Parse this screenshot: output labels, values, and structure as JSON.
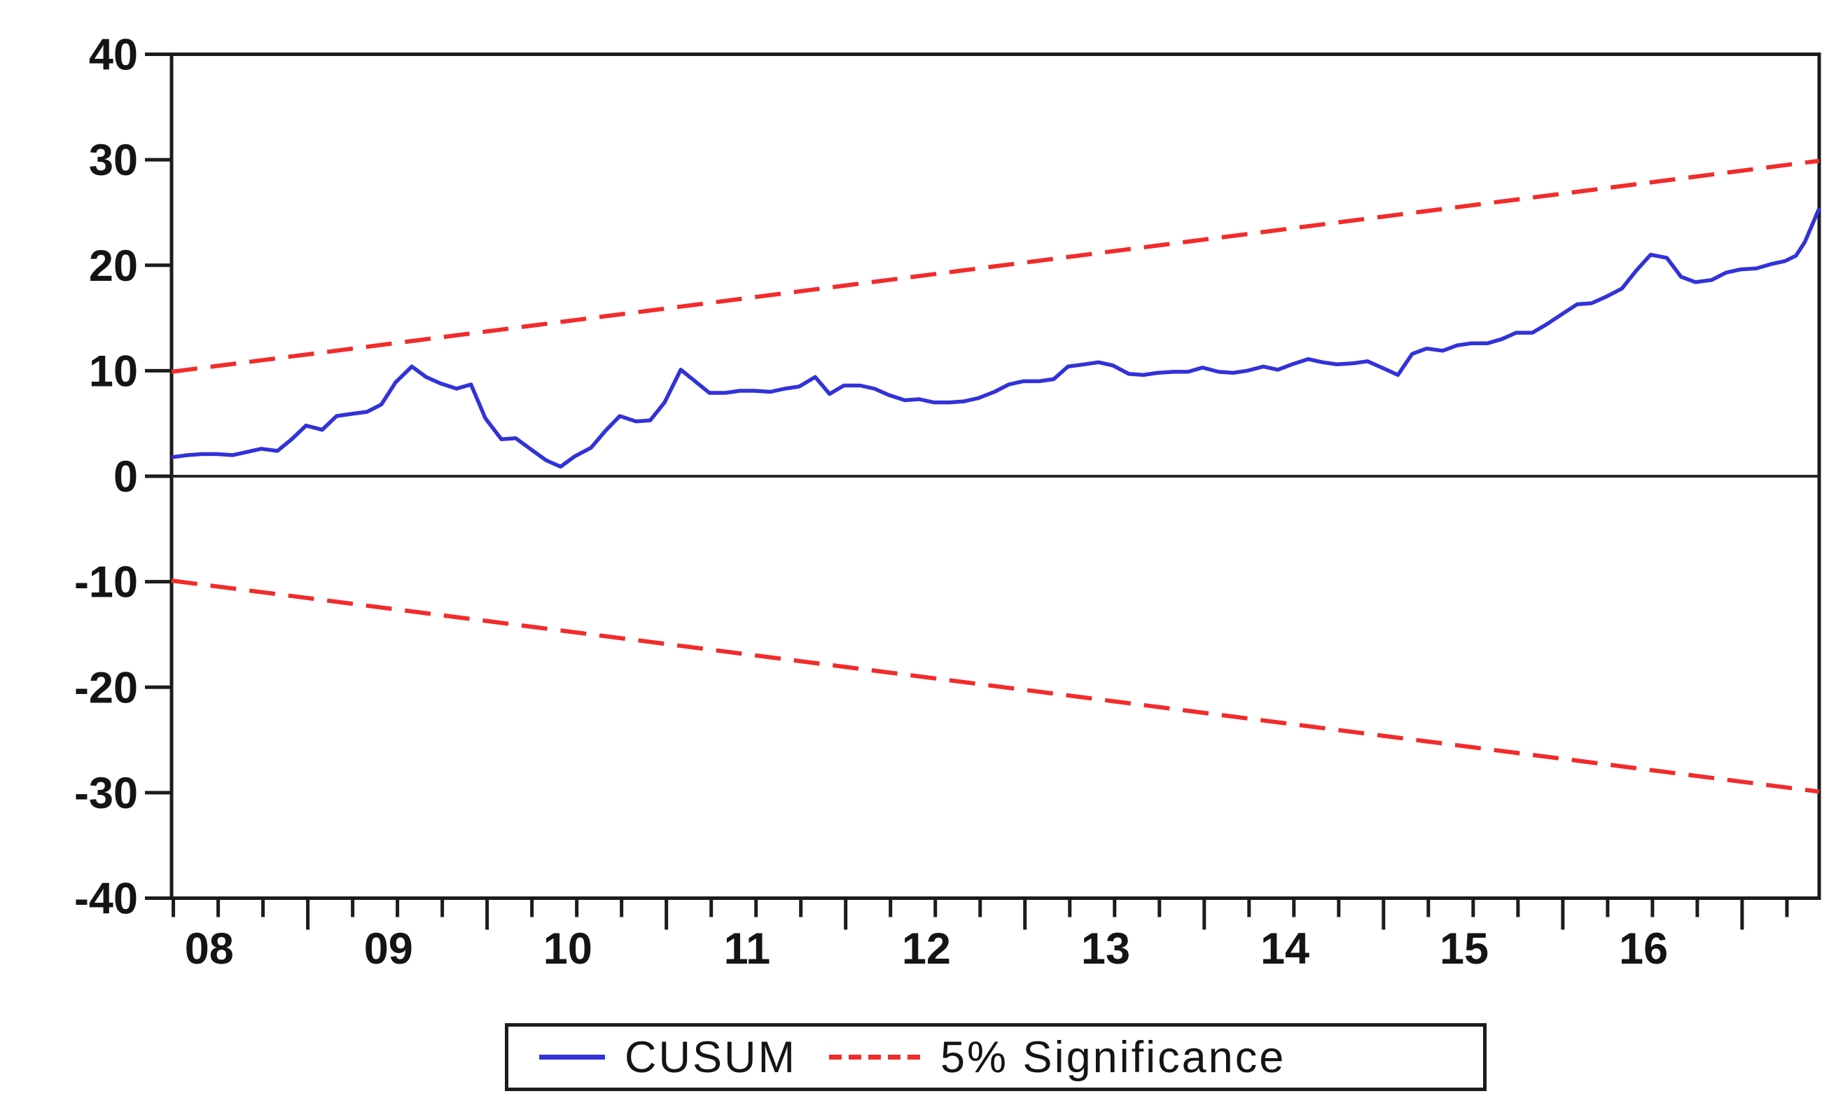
{
  "figure": {
    "description": "CUSUM recursive-residual stability test plot with 5% significance bounds",
    "background": "#ffffff"
  },
  "colors": {
    "cusum": "#3232d9",
    "significance": "#f22b2b",
    "axis": "#1c1c1c",
    "zero_line": "#262626",
    "text": "#141414",
    "background": "#ffffff"
  },
  "legend": {
    "items": [
      {
        "label": "CUSUM",
        "line_style": "solid",
        "color": "#3232d9"
      },
      {
        "label": "5% Significance",
        "line_style": "dashed",
        "color": "#f22b2b"
      }
    ]
  },
  "chart_data": {
    "type": "line",
    "title": "",
    "xlabel": "",
    "ylabel": "",
    "xlim": [
      2007.79,
      2016.98
    ],
    "ylim": [
      -40,
      40
    ],
    "grid": false,
    "legend_position": "bottom-center",
    "y_ticks": [
      40,
      30,
      20,
      10,
      0,
      -10,
      -20,
      -30,
      -40
    ],
    "x_tick_labels": [
      "08",
      "09",
      "10",
      "11",
      "12",
      "13",
      "14",
      "15",
      "16"
    ],
    "x_tick_years": [
      2008,
      2009,
      2010,
      2011,
      2012,
      2013,
      2014,
      2015,
      2016
    ],
    "minor_tick_start": 2007.8,
    "minor_tick_step": 0.25,
    "minor_tick_end": 2016.82,
    "zero_line": 0,
    "series": [
      {
        "name": "CUSUM",
        "style": "solid",
        "color_key": "cusum",
        "points": [
          [
            2007.79,
            1.8
          ],
          [
            2007.88,
            2.0
          ],
          [
            2007.96,
            2.1
          ],
          [
            2008.04,
            2.1
          ],
          [
            2008.13,
            2.0
          ],
          [
            2008.21,
            2.3
          ],
          [
            2008.29,
            2.6
          ],
          [
            2008.38,
            2.4
          ],
          [
            2008.46,
            3.5
          ],
          [
            2008.54,
            4.8
          ],
          [
            2008.63,
            4.4
          ],
          [
            2008.71,
            5.7
          ],
          [
            2008.79,
            5.9
          ],
          [
            2008.88,
            6.1
          ],
          [
            2008.96,
            6.8
          ],
          [
            2009.04,
            8.9
          ],
          [
            2009.13,
            10.4
          ],
          [
            2009.21,
            9.4
          ],
          [
            2009.29,
            8.8
          ],
          [
            2009.38,
            8.3
          ],
          [
            2009.46,
            8.7
          ],
          [
            2009.54,
            5.5
          ],
          [
            2009.63,
            3.5
          ],
          [
            2009.71,
            3.6
          ],
          [
            2009.79,
            2.6
          ],
          [
            2009.88,
            1.5
          ],
          [
            2009.96,
            0.9
          ],
          [
            2010.04,
            1.9
          ],
          [
            2010.13,
            2.7
          ],
          [
            2010.21,
            4.3
          ],
          [
            2010.29,
            5.7
          ],
          [
            2010.38,
            5.2
          ],
          [
            2010.46,
            5.3
          ],
          [
            2010.54,
            7.0
          ],
          [
            2010.63,
            10.1
          ],
          [
            2010.71,
            9.0
          ],
          [
            2010.79,
            7.9
          ],
          [
            2010.88,
            7.9
          ],
          [
            2010.96,
            8.1
          ],
          [
            2011.04,
            8.1
          ],
          [
            2011.13,
            8.0
          ],
          [
            2011.21,
            8.3
          ],
          [
            2011.29,
            8.5
          ],
          [
            2011.38,
            9.4
          ],
          [
            2011.46,
            7.8
          ],
          [
            2011.54,
            8.6
          ],
          [
            2011.63,
            8.6
          ],
          [
            2011.71,
            8.3
          ],
          [
            2011.79,
            7.7
          ],
          [
            2011.88,
            7.2
          ],
          [
            2011.96,
            7.3
          ],
          [
            2012.04,
            7.0
          ],
          [
            2012.13,
            7.0
          ],
          [
            2012.21,
            7.1
          ],
          [
            2012.29,
            7.4
          ],
          [
            2012.38,
            8.0
          ],
          [
            2012.46,
            8.7
          ],
          [
            2012.54,
            9.0
          ],
          [
            2012.63,
            9.0
          ],
          [
            2012.71,
            9.2
          ],
          [
            2012.79,
            10.4
          ],
          [
            2012.88,
            10.6
          ],
          [
            2012.96,
            10.8
          ],
          [
            2013.04,
            10.5
          ],
          [
            2013.13,
            9.7
          ],
          [
            2013.21,
            9.6
          ],
          [
            2013.29,
            9.8
          ],
          [
            2013.38,
            9.9
          ],
          [
            2013.46,
            9.9
          ],
          [
            2013.54,
            10.3
          ],
          [
            2013.63,
            9.9
          ],
          [
            2013.71,
            9.8
          ],
          [
            2013.79,
            10.0
          ],
          [
            2013.88,
            10.4
          ],
          [
            2013.96,
            10.1
          ],
          [
            2014.04,
            10.6
          ],
          [
            2014.13,
            11.1
          ],
          [
            2014.21,
            10.8
          ],
          [
            2014.29,
            10.6
          ],
          [
            2014.38,
            10.7
          ],
          [
            2014.46,
            10.9
          ],
          [
            2014.54,
            10.3
          ],
          [
            2014.63,
            9.6
          ],
          [
            2014.71,
            11.6
          ],
          [
            2014.79,
            12.1
          ],
          [
            2014.88,
            11.9
          ],
          [
            2014.96,
            12.4
          ],
          [
            2015.04,
            12.6
          ],
          [
            2015.13,
            12.6
          ],
          [
            2015.21,
            13.0
          ],
          [
            2015.29,
            13.6
          ],
          [
            2015.38,
            13.6
          ],
          [
            2015.46,
            14.4
          ],
          [
            2015.54,
            15.3
          ],
          [
            2015.63,
            16.3
          ],
          [
            2015.71,
            16.4
          ],
          [
            2015.79,
            17.0
          ],
          [
            2015.88,
            17.8
          ],
          [
            2015.96,
            19.5
          ],
          [
            2016.04,
            21.0
          ],
          [
            2016.13,
            20.7
          ],
          [
            2016.21,
            18.9
          ],
          [
            2016.29,
            18.4
          ],
          [
            2016.38,
            18.6
          ],
          [
            2016.46,
            19.3
          ],
          [
            2016.54,
            19.6
          ],
          [
            2016.63,
            19.7
          ],
          [
            2016.71,
            20.1
          ],
          [
            2016.79,
            20.4
          ],
          [
            2016.85,
            20.9
          ],
          [
            2016.9,
            22.2
          ],
          [
            2016.94,
            23.8
          ],
          [
            2016.98,
            25.4
          ]
        ]
      },
      {
        "name": "5% Significance (upper bound)",
        "style": "dashed",
        "color_key": "significance",
        "points": [
          [
            2007.79,
            9.9
          ],
          [
            2016.98,
            29.9
          ]
        ]
      },
      {
        "name": "5% Significance (lower bound)",
        "style": "dashed",
        "color_key": "significance",
        "points": [
          [
            2007.79,
            -9.9
          ],
          [
            2016.98,
            -29.9
          ]
        ]
      }
    ]
  }
}
